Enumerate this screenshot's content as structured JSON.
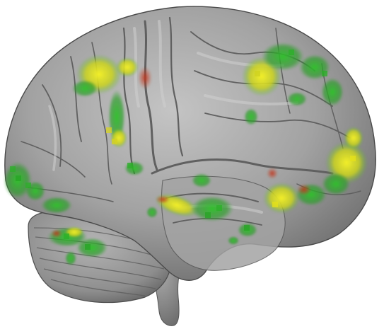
{
  "image": {
    "subject": "brain-render",
    "colors": {
      "background": "#ffffff",
      "cortex_light": "#b9b9b9",
      "cortex_mid": "#9a9a9a",
      "cortex_dark": "#6e6e6e",
      "sulcus": "#5a5a5a",
      "activation_green": "#2fb52a",
      "activation_yellow": "#e6e21a",
      "activation_red": "#b8331d"
    },
    "activation_clusters": [
      {
        "region": "superior-frontal-left",
        "color": "yellow"
      },
      {
        "region": "precentral",
        "color": "green"
      },
      {
        "region": "parietal-upper",
        "color": "green"
      },
      {
        "region": "occipital",
        "color": "yellow"
      },
      {
        "region": "temporal-middle",
        "color": "green"
      },
      {
        "region": "frontal-pole",
        "color": "green"
      },
      {
        "region": "cerebellum-upper",
        "color": "green"
      }
    ]
  }
}
